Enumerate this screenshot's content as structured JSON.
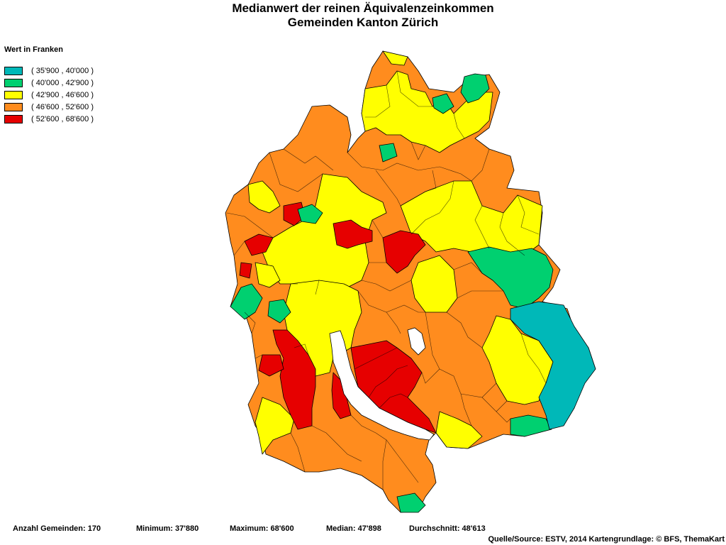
{
  "title_line1": "Medianwert der reinen Äquivalenzeinkommen",
  "title_line2": "Gemeinden Kanton Zürich",
  "legend": {
    "heading": "Wert in Franken",
    "items": [
      {
        "label": "( 35'900 , 40'000 )",
        "color": "#00B8B8"
      },
      {
        "label": "( 40'000 , 42'900 )",
        "color": "#00D070"
      },
      {
        "label": "( 42'900 , 46'600 )",
        "color": "#FFFF00"
      },
      {
        "label": "( 46'600 , 52'600 )",
        "color": "#FF8C1E"
      },
      {
        "label": "( 52'600 , 68'600 )",
        "color": "#E60000"
      }
    ]
  },
  "map": {
    "region": "Kanton Zürich",
    "lake": "Zürichsee",
    "lake_color": "#FFFFFF",
    "border_color": "#000000"
  },
  "stats": {
    "count": "Anzahl Gemeinden: 170",
    "minimum": "Minimum: 37'880",
    "maximum": "Maximum: 68'600",
    "median": "Median: 47'898",
    "mean": "Durchschnitt: 48'613"
  },
  "source": "Quelle/Source: ESTV, 2014 Kartengrundlage: © BFS, ThemaKart"
}
